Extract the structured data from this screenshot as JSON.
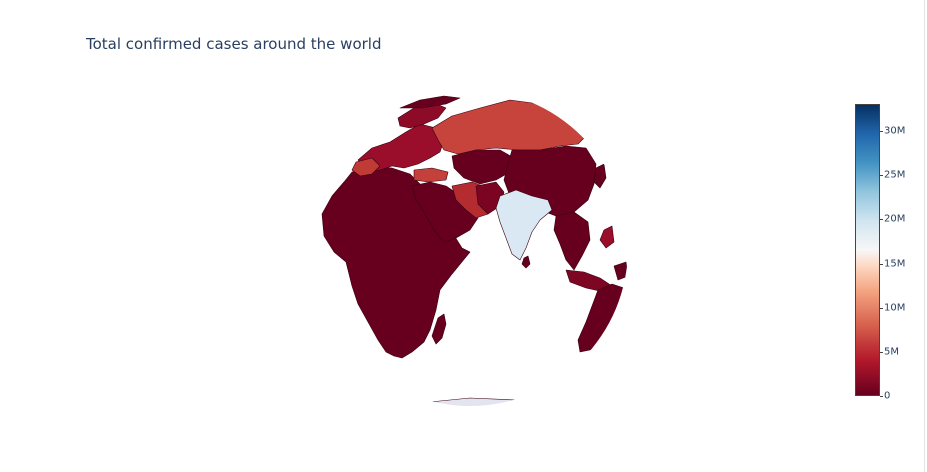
{
  "title": "Total confirmed cases around the world",
  "colorscale": {
    "name": "RdBu",
    "stops": [
      "#67001f",
      "#b2182b",
      "#d6604d",
      "#f4a582",
      "#fddbc7",
      "#f7f7f7",
      "#d1e5f0",
      "#92c5de",
      "#4393c3",
      "#2166ac",
      "#053061"
    ],
    "range": [
      0,
      33000000
    ],
    "tick_labels": [
      "30M",
      "25M",
      "20M",
      "15M",
      "10M",
      "5M",
      "0"
    ],
    "tick_values": [
      30000000,
      25000000,
      20000000,
      15000000,
      10000000,
      5000000,
      0
    ]
  },
  "map": {
    "projection": "orthographic",
    "ocean_color": "#ffffff",
    "border_color": "#3a0010",
    "regions": [
      {
        "name": "Africa",
        "color": "#67001f"
      },
      {
        "name": "Middle East",
        "color": "#67001f"
      },
      {
        "name": "Russia",
        "color": "#c7443c"
      },
      {
        "name": "India",
        "color": "#d9e8f2"
      },
      {
        "name": "China",
        "color": "#67001f"
      },
      {
        "name": "Iran",
        "color": "#b42c30"
      },
      {
        "name": "Turkey",
        "color": "#c4403a"
      },
      {
        "name": "Europe",
        "color": "#9a0e2b"
      },
      {
        "name": "Southeast Asia",
        "color": "#67001f"
      },
      {
        "name": "Australia",
        "color": "#67001f"
      }
    ]
  }
}
